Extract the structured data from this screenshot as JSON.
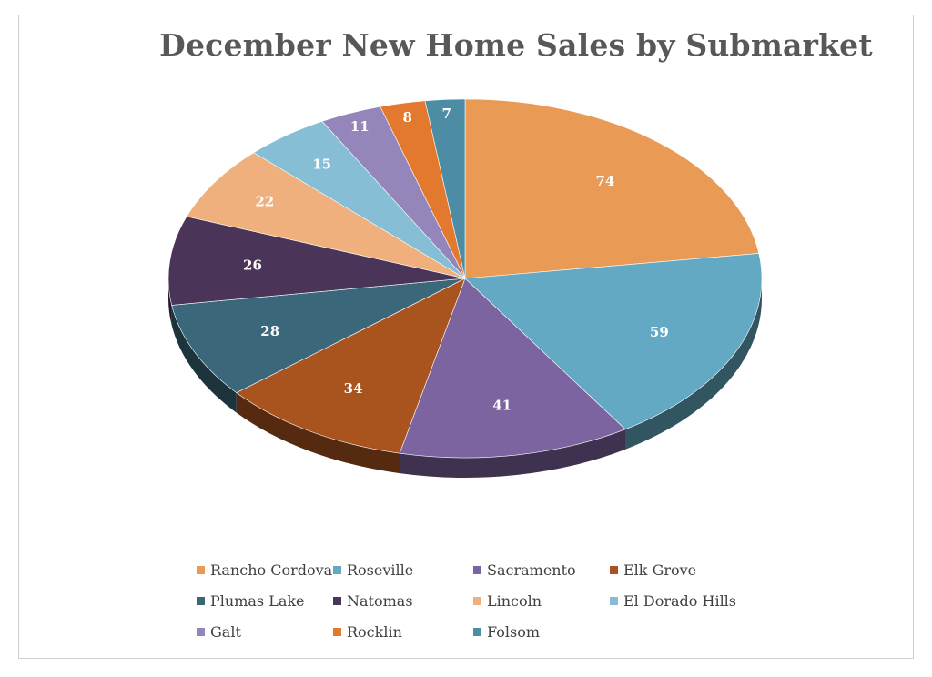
{
  "chart_data": {
    "type": "pie",
    "title": "December New Home Sales by Submarket",
    "categories": [
      "Rancho Cordova",
      "Roseville",
      "Sacramento",
      "Elk Grove",
      "Plumas Lake",
      "Natomas",
      "Lincoln",
      "El Dorado Hills",
      "Galt",
      "Rocklin",
      "Folsom"
    ],
    "values": [
      74,
      59,
      41,
      34,
      28,
      26,
      22,
      15,
      11,
      8,
      7
    ],
    "colors": [
      "#E99B56",
      "#64A9C4",
      "#7B64A0",
      "#A9531F",
      "#3A6779",
      "#4A3458",
      "#EFB07D",
      "#86BED5",
      "#9486BB",
      "#E2792E",
      "#4D8CA5"
    ],
    "data_labels": [
      "74",
      "59",
      "41",
      "34",
      "28",
      "26",
      "22",
      "15",
      "11",
      "8",
      "7"
    ],
    "legend_position": "bottom",
    "style": "3d-tilted"
  }
}
